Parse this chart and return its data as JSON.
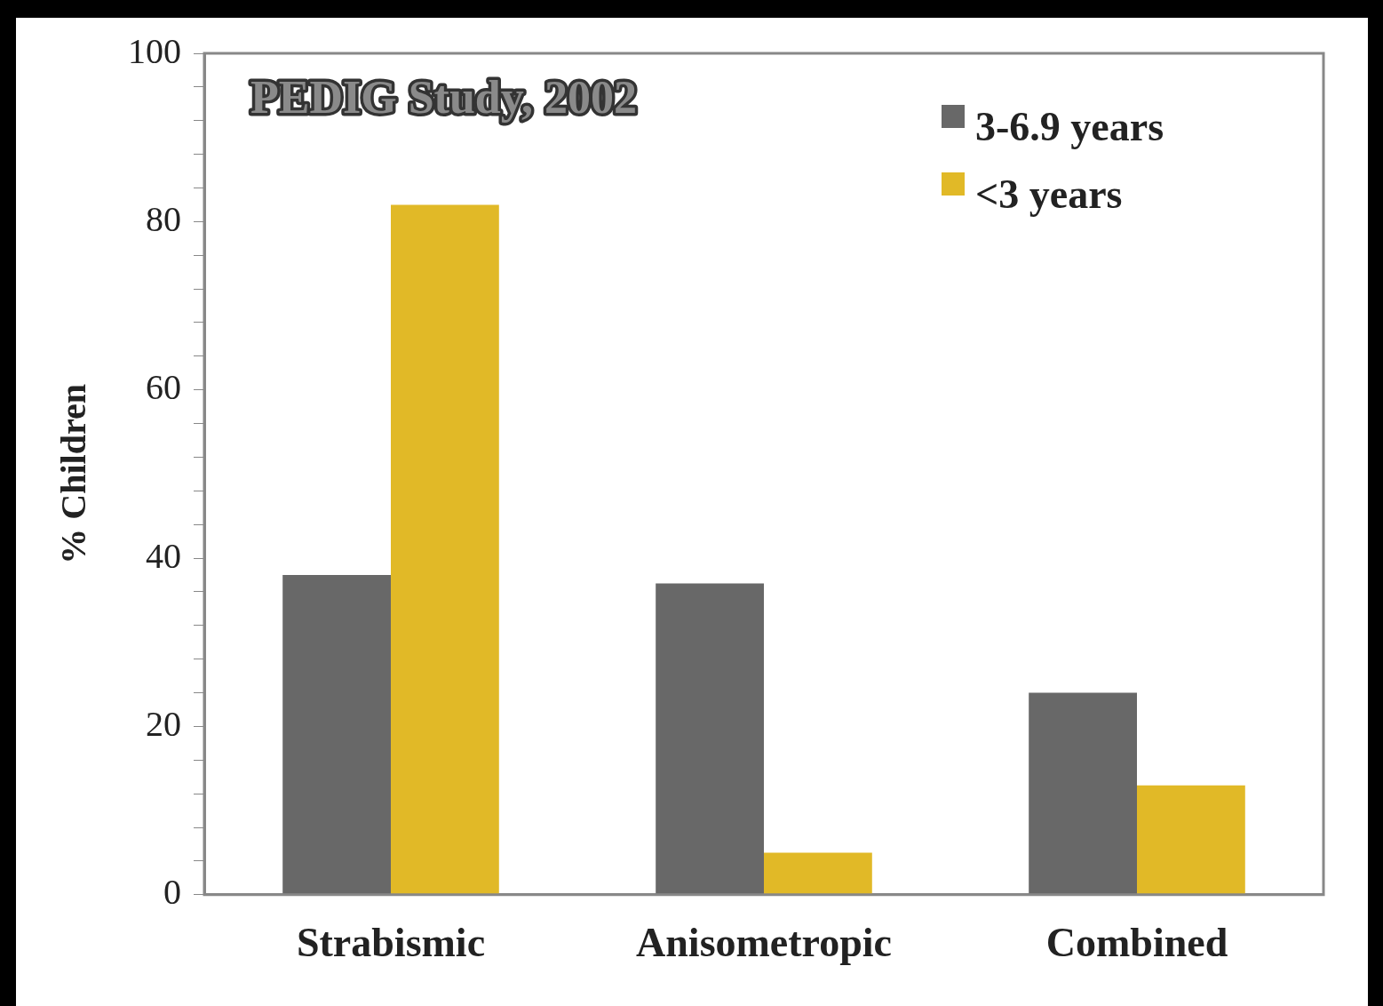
{
  "chart_data": {
    "type": "bar",
    "title": "PEDIG Study, 2002",
    "ylabel": "% Children",
    "categories": [
      "Strabismic",
      "Anisometropic",
      "Combined"
    ],
    "series": [
      {
        "name": "3-6.9 years",
        "color": "#686868",
        "values": [
          38,
          37,
          24
        ]
      },
      {
        "name": "<3 years",
        "color": "#e1b927",
        "values": [
          82,
          5,
          13
        ]
      }
    ],
    "ylim": [
      0,
      100
    ],
    "yticks": [
      0,
      {
        "value": 4,
        "label": null
      },
      {
        "value": 8,
        "label": null
      },
      {
        "value": 12,
        "label": null
      },
      {
        "value": 16,
        "label": null
      },
      20,
      {
        "value": 24,
        "label": null
      },
      {
        "value": 28,
        "label": null
      },
      {
        "value": 32,
        "label": null
      },
      {
        "value": 36,
        "label": null
      },
      40,
      {
        "value": 44,
        "label": null
      },
      {
        "value": 48,
        "label": null
      },
      {
        "value": 52,
        "label": null
      },
      {
        "value": 56,
        "label": null
      },
      60,
      {
        "value": 64,
        "label": null
      },
      {
        "value": 68,
        "label": null
      },
      {
        "value": 72,
        "label": null
      },
      {
        "value": 76,
        "label": null
      },
      80,
      {
        "value": 84,
        "label": null
      },
      {
        "value": 88,
        "label": null
      },
      {
        "value": 92,
        "label": null
      },
      {
        "value": 96,
        "label": null
      },
      100
    ],
    "grid": false,
    "legend": "top right"
  }
}
